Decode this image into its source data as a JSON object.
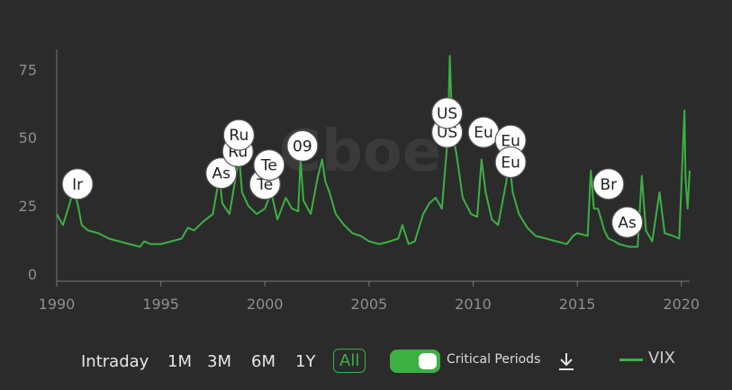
{
  "chart_data": {
    "type": "line",
    "title": "",
    "xlabel": "",
    "ylabel": "",
    "xlim": [
      1990,
      2020.4
    ],
    "ylim": [
      0,
      85
    ],
    "grid": false,
    "legend_placement": "bottom-right",
    "x_ticks": [
      "1990",
      "1995",
      "2000",
      "2005",
      "2010",
      "2015",
      "2020"
    ],
    "y_ticks": [
      "0",
      "25",
      "50",
      "75"
    ],
    "series": [
      {
        "name": "VIX",
        "color": "#3cb043",
        "x": [
          1990.0,
          1990.3,
          1990.55,
          1990.7,
          1990.85,
          1991.0,
          1991.2,
          1991.5,
          1992.0,
          1992.5,
          1993.0,
          1993.5,
          1994.0,
          1994.2,
          1994.5,
          1995.0,
          1995.5,
          1996.0,
          1996.3,
          1996.6,
          1997.0,
          1997.5,
          1997.82,
          1997.95,
          1998.3,
          1998.65,
          1998.75,
          1998.9,
          1999.2,
          1999.6,
          2000.0,
          2000.3,
          2000.6,
          2001.0,
          2001.3,
          2001.6,
          2001.71,
          2001.85,
          2002.2,
          2002.55,
          2002.75,
          2002.9,
          2003.1,
          2003.4,
          2003.8,
          2004.2,
          2004.6,
          2005.0,
          2005.5,
          2006.0,
          2006.4,
          2006.6,
          2006.9,
          2007.2,
          2007.6,
          2007.9,
          2008.2,
          2008.5,
          2008.78,
          2008.88,
          2009.0,
          2009.2,
          2009.5,
          2009.9,
          2010.2,
          2010.4,
          2010.6,
          2010.9,
          2011.2,
          2011.6,
          2011.7,
          2011.9,
          2012.2,
          2012.6,
          2013.0,
          2013.5,
          2014.0,
          2014.5,
          2014.8,
          2015.0,
          2015.5,
          2015.65,
          2015.8,
          2016.0,
          2016.3,
          2016.5,
          2016.8,
          2017.0,
          2017.5,
          2017.9,
          2018.1,
          2018.3,
          2018.6,
          2018.95,
          2019.2,
          2019.6,
          2019.9,
          2020.15,
          2020.2,
          2020.3,
          2020.4
        ],
        "values": [
          22,
          18,
          24,
          28,
          30,
          26,
          18,
          16,
          15,
          13,
          12,
          11,
          10,
          12,
          11,
          11,
          12,
          13,
          17,
          16,
          19,
          22,
          36,
          26,
          22,
          38,
          44,
          30,
          25,
          22,
          24,
          30,
          20,
          28,
          24,
          23,
          42,
          27,
          22,
          36,
          42,
          34,
          30,
          22,
          18,
          15,
          14,
          12,
          11,
          12,
          13,
          18,
          11,
          12,
          22,
          26,
          28,
          24,
          50,
          80,
          52,
          44,
          28,
          22,
          21,
          42,
          30,
          20,
          18,
          34,
          45,
          30,
          22,
          17,
          14,
          13,
          12,
          11,
          14,
          15,
          14,
          38,
          24,
          24,
          16,
          13,
          12,
          11,
          10,
          10,
          36,
          16,
          12,
          30,
          15,
          14,
          13,
          60,
          35,
          24,
          38
        ]
      }
    ],
    "annotations": [
      {
        "label": "Ir",
        "x": 1991.0,
        "y": 33
      },
      {
        "label": "As",
        "x": 1997.9,
        "y": 37
      },
      {
        "label": "Ru",
        "x": 1998.7,
        "y": 45
      },
      {
        "label": "Ru",
        "x": 1998.75,
        "y": 51
      },
      {
        "label": "Te",
        "x": 2000.0,
        "y": 33
      },
      {
        "label": "Te",
        "x": 2000.2,
        "y": 40
      },
      {
        "label": "09",
        "x": 2001.8,
        "y": 47
      },
      {
        "label": "US",
        "x": 2008.75,
        "y": 52
      },
      {
        "label": "US",
        "x": 2008.75,
        "y": 59
      },
      {
        "label": "Eu",
        "x": 2010.5,
        "y": 52
      },
      {
        "label": "Eu",
        "x": 2011.8,
        "y": 49
      },
      {
        "label": "Eu",
        "x": 2011.8,
        "y": 41
      },
      {
        "label": "Br",
        "x": 2016.5,
        "y": 33
      },
      {
        "label": "As",
        "x": 2017.4,
        "y": 19
      }
    ],
    "watermark": "Cboe"
  },
  "controls": {
    "ranges": [
      {
        "label": "Intraday",
        "active": false
      },
      {
        "label": "1M",
        "active": false
      },
      {
        "label": "3M",
        "active": false
      },
      {
        "label": "6M",
        "active": false
      },
      {
        "label": "1Y",
        "active": false
      },
      {
        "label": "All",
        "active": true
      }
    ],
    "critical_periods": {
      "label": "Critical Periods",
      "enabled": true
    },
    "download_icon": "download-icon",
    "legend_label": "VIX"
  },
  "colors": {
    "background": "#2b2b2b",
    "accent": "#3cb043",
    "axis": "#777777"
  }
}
